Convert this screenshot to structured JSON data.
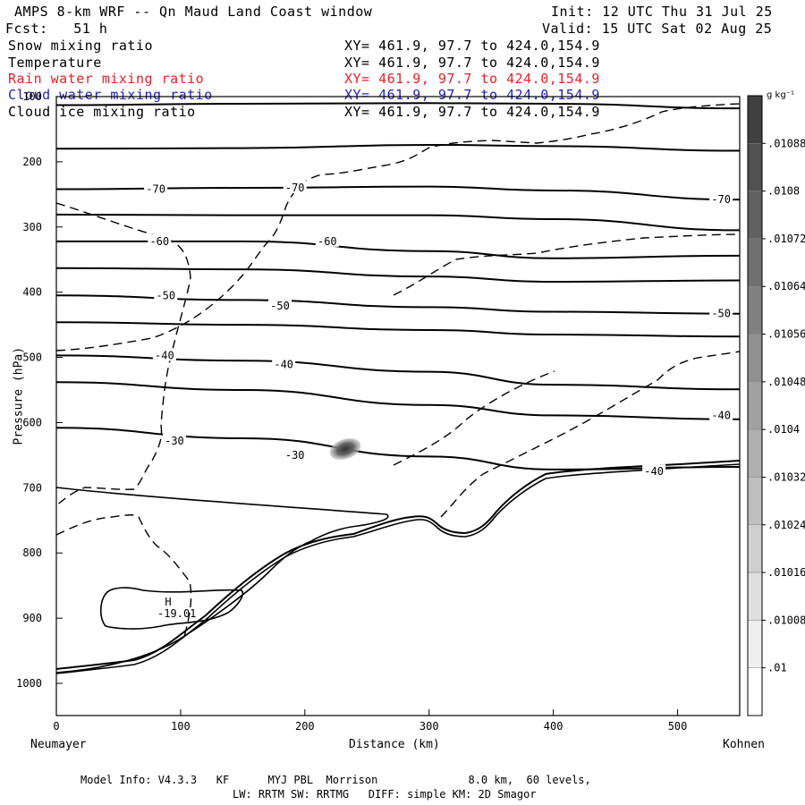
{
  "header": {
    "title": "AMPS 8-km WRF -- Qn Maud Land Coast window",
    "init": "Init: 12 UTC Thu 31 Jul 25",
    "fcst": "Fcst:   51 h",
    "valid": "Valid: 15 UTC Sat 02 Aug 25"
  },
  "legend": [
    {
      "name": "Snow mixing ratio",
      "xy": "XY= 461.9, 97.7 to 424.0,154.9",
      "color": "#000000"
    },
    {
      "name": "Temperature",
      "xy": "XY= 461.9, 97.7 to 424.0,154.9",
      "color": "#000000"
    },
    {
      "name": "Rain water mixing ratio",
      "xy": "XY= 461.9, 97.7 to 424.0,154.9",
      "color": "#e8202a"
    },
    {
      "name": "Cloud water mixing ratio",
      "xy": "XY= 461.9, 97.7 to 424.0,154.9",
      "color": "#2020c0"
    },
    {
      "name": "Cloud ice mixing ratio",
      "xy": "XY= 461.9, 97.7 to 424.0,154.9",
      "color": "#000000"
    }
  ],
  "axes": {
    "ylabel": "Pressure (hPa)",
    "xlabel": "Distance (km)",
    "x_left_name": "Neumayer",
    "x_right_name": "Kohnen"
  },
  "colorbar": {
    "unit": "g kg⁻¹",
    "labels": [
      ".01088",
      ".0108",
      ".01072",
      ".01064",
      ".01056",
      ".01048",
      ".0104",
      ".01032",
      ".01024",
      ".01016",
      ".01008",
      ".01"
    ]
  },
  "footer": {
    "line1": "Model Info: V4.3.3   KF      MYJ PBL  Morrison              8.0 km,  60 levels,",
    "line2": "LW: RRTM SW: RRTMG   DIFF: simple KM: 2D Smagor"
  },
  "chart_data": {
    "type": "line",
    "x_range": [
      0,
      550
    ],
    "y_range": [
      100,
      1050
    ],
    "y_inverted": true,
    "x_ticks": [
      0,
      100,
      200,
      300,
      400,
      500
    ],
    "y_ticks": [
      100,
      200,
      300,
      400,
      500,
      600,
      700,
      800,
      900,
      1000
    ],
    "contour_labels": [
      {
        "text": "-70",
        "x": 80,
        "p": 242
      },
      {
        "text": "-70",
        "x": 192,
        "p": 240
      },
      {
        "text": "-70",
        "x": 535,
        "p": 258
      },
      {
        "text": "-60",
        "x": 83,
        "p": 322
      },
      {
        "text": "-60",
        "x": 218,
        "p": 322
      },
      {
        "text": "-50",
        "x": 88,
        "p": 405
      },
      {
        "text": "-50",
        "x": 180,
        "p": 421
      },
      {
        "text": "-50",
        "x": 535,
        "p": 433
      },
      {
        "text": "-40",
        "x": 87,
        "p": 497
      },
      {
        "text": "-40",
        "x": 183,
        "p": 511
      },
      {
        "text": "-40",
        "x": 535,
        "p": 589
      },
      {
        "text": "-40",
        "x": 481,
        "p": 675
      },
      {
        "text": "-30",
        "x": 95,
        "p": 628
      },
      {
        "text": "-30",
        "x": 192,
        "p": 650
      }
    ],
    "high_label": {
      "text": "H",
      "x": 90,
      "p": 875
    },
    "high_value": {
      "text": "-19.01",
      "x": 97,
      "p": 893
    },
    "temperature_isotherms_p_at_x": [
      {
        "x": [
          0,
          150,
          300,
          400,
          550
        ],
        "p": [
          113,
          111,
          110,
          111,
          118
        ]
      },
      {
        "x": [
          0,
          150,
          300,
          400,
          550
        ],
        "p": [
          180,
          179,
          174,
          176,
          183
        ]
      },
      {
        "x": [
          0,
          150,
          300,
          400,
          550
        ],
        "p": [
          242,
          240,
          238,
          244,
          258
        ]
      },
      {
        "x": [
          0,
          150,
          300,
          400,
          550
        ],
        "p": [
          281,
          282,
          282,
          288,
          305
        ]
      },
      {
        "x": [
          0,
          150,
          300,
          400,
          550
        ],
        "p": [
          322,
          322,
          337,
          348,
          344
        ]
      },
      {
        "x": [
          0,
          150,
          300,
          400,
          550
        ],
        "p": [
          363,
          365,
          376,
          384,
          382
        ]
      },
      {
        "x": [
          0,
          150,
          300,
          400,
          550
        ],
        "p": [
          405,
          412,
          423,
          430,
          433
        ]
      },
      {
        "x": [
          0,
          150,
          300,
          400,
          550
        ],
        "p": [
          446,
          450,
          458,
          465,
          468
        ]
      },
      {
        "x": [
          0,
          150,
          300,
          400,
          550
        ],
        "p": [
          497,
          505,
          522,
          542,
          549
        ]
      },
      {
        "x": [
          0,
          150,
          300,
          400,
          550
        ],
        "p": [
          538,
          550,
          573,
          589,
          595
        ]
      },
      {
        "x": [
          0,
          150,
          300,
          400,
          550
        ],
        "p": [
          608,
          624,
          652,
          672,
          668
        ]
      }
    ]
  }
}
